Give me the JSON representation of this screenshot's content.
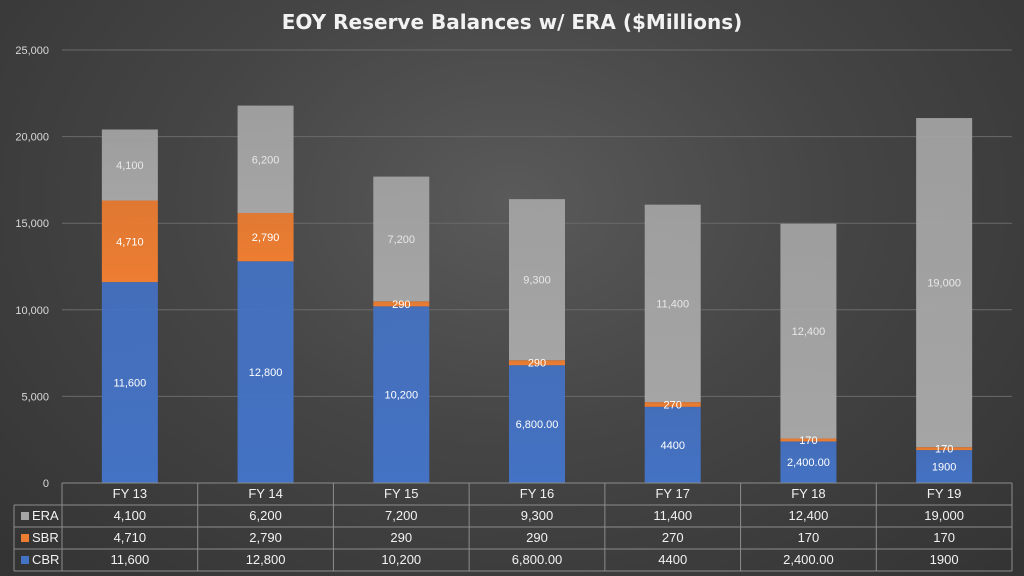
{
  "chart_data": {
    "type": "bar",
    "stacked": true,
    "title": "EOY Reserve Balances w/ ERA ($Millions)",
    "categories": [
      "FY 13",
      "FY 14",
      "FY 15",
      "FY 16",
      "FY 17",
      "FY 18",
      "FY 19"
    ],
    "ylim": [
      0,
      25000
    ],
    "yticks": [
      "0",
      "5,000",
      "10,000",
      "15,000",
      "20,000",
      "25,000"
    ],
    "ytick_values": [
      0,
      5000,
      10000,
      15000,
      20000,
      25000
    ],
    "grid": true,
    "legend_placement": "data-table-left",
    "series": [
      {
        "name": "CBR",
        "color": "#4472c4",
        "values": [
          11600,
          12800,
          10200,
          6800,
          4400,
          2400,
          1900
        ],
        "labels": [
          "11,600",
          "12,800",
          "10,200",
          "6,800.00",
          "4400",
          "2,400.00",
          "1900"
        ]
      },
      {
        "name": "SBR",
        "color": "#ed7d31",
        "values": [
          4710,
          2790,
          290,
          290,
          270,
          170,
          170
        ],
        "labels": [
          "4,710",
          "2,790",
          "290",
          "290",
          "270",
          "170",
          "170"
        ]
      },
      {
        "name": "ERA",
        "color": "#a5a5a5",
        "values": [
          4100,
          6200,
          7200,
          9300,
          11400,
          12400,
          19000
        ],
        "labels": [
          "4,100",
          "6,200",
          "7,200",
          "9,300",
          "11,400",
          "12,400",
          "19,000"
        ]
      }
    ],
    "table_row_order": [
      "ERA",
      "SBR",
      "CBR"
    ]
  }
}
